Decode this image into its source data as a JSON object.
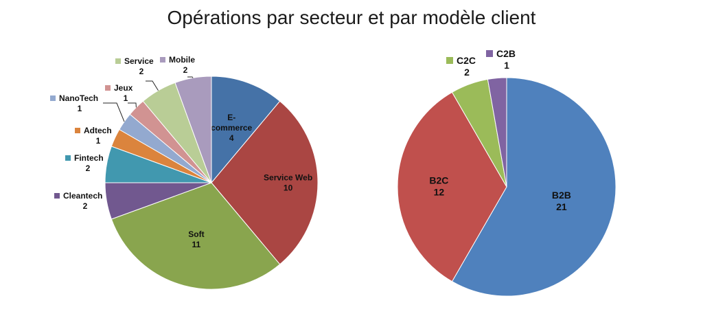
{
  "title": "Opérations par secteur et par modèle client",
  "chart_data": [
    {
      "type": "pie",
      "title": "",
      "legend": "none",
      "slices": [
        {
          "name": "E-commerce",
          "value": 4,
          "color": "#4572A7"
        },
        {
          "name": "Service Web",
          "value": 10,
          "color": "#AA4643"
        },
        {
          "name": "Soft",
          "value": 11,
          "color": "#89A54E"
        },
        {
          "name": "Cleantech",
          "value": 2,
          "color": "#71588F"
        },
        {
          "name": "Fintech",
          "value": 2,
          "color": "#4198AF"
        },
        {
          "name": "Adtech",
          "value": 1,
          "color": "#DB843D"
        },
        {
          "name": "NanoTech",
          "value": 1,
          "color": "#93A9CF"
        },
        {
          "name": "Jeux",
          "value": 1,
          "color": "#D19392"
        },
        {
          "name": "Service",
          "value": 2,
          "color": "#B9CD96"
        },
        {
          "name": "Mobile",
          "value": 2,
          "color": "#A99BBD"
        }
      ]
    },
    {
      "type": "pie",
      "title": "",
      "legend": "none",
      "slices": [
        {
          "name": "B2B",
          "value": 21,
          "color": "#4F81BD"
        },
        {
          "name": "B2C",
          "value": 12,
          "color": "#C0504D"
        },
        {
          "name": "C2C",
          "value": 2,
          "color": "#9BBB59"
        },
        {
          "name": "C2B",
          "value": 1,
          "color": "#8064A2"
        }
      ]
    }
  ]
}
